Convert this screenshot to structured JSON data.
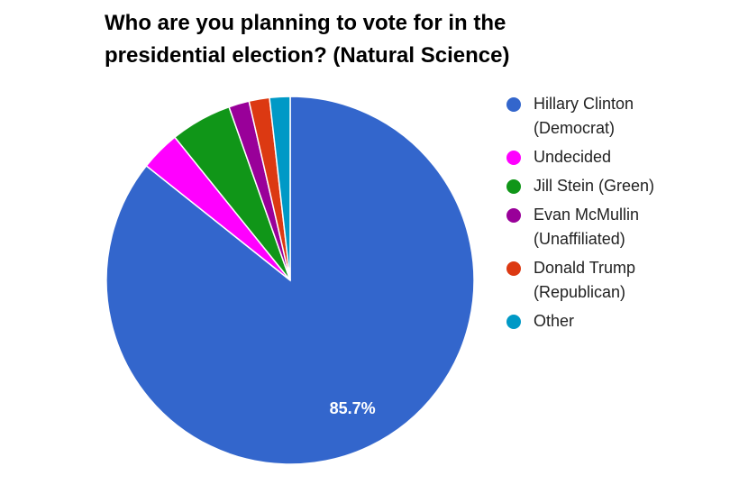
{
  "chart_data": {
    "type": "pie",
    "title": "Who are you planning to vote for in the presidential election? (Natural Science)",
    "categories": [
      "Hillary Clinton (Democrat)",
      "Undecided",
      "Jill Stein (Green)",
      "Evan McMullin (Unaffiliated)",
      "Donald Trump (Republican)",
      "Other"
    ],
    "values": [
      85.7,
      3.5,
      5.4,
      1.8,
      1.8,
      1.8
    ],
    "value_labels": [
      "85.7%",
      null,
      null,
      null,
      null,
      null
    ],
    "colors": [
      "#3366cc",
      "#ff00ff",
      "#109618",
      "#990099",
      "#dc3912",
      "#0099c6"
    ],
    "legend": "right"
  }
}
